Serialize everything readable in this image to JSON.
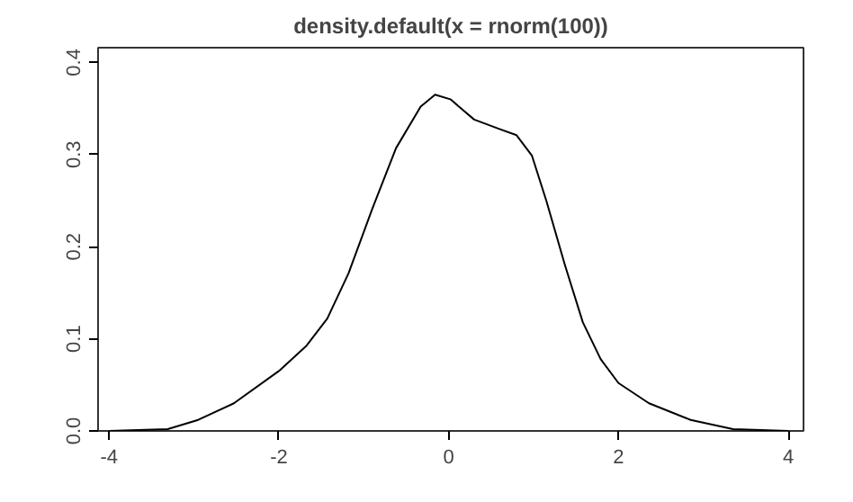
{
  "chart_data": {
    "type": "line",
    "title": "density.default(x = rnorm(100))",
    "x": [
      -4,
      -3.31,
      -2.95,
      -2.53,
      -2.0,
      -1.68,
      -1.43,
      -1.18,
      -0.9,
      -0.62,
      -0.33,
      -0.16,
      0.02,
      0.3,
      0.59,
      0.8,
      0.98,
      1.15,
      1.37,
      1.58,
      1.79,
      2.0,
      2.36,
      2.85,
      3.35,
      4.0
    ],
    "series": [
      {
        "color": "#000000",
        "values": [
          0,
          0.002,
          0.012,
          0.03,
          0.065,
          0.092,
          0.122,
          0.171,
          0.241,
          0.307,
          0.352,
          0.365,
          0.36,
          0.338,
          0.328,
          0.321,
          0.299,
          0.25,
          0.18,
          0.118,
          0.078,
          0.052,
          0.03,
          0.012,
          0.002,
          0
        ]
      }
    ],
    "xlim": [
      -4.13,
      4.18
    ],
    "ylim": [
      0,
      0.416
    ],
    "xticks": [
      -4,
      -2,
      0,
      2,
      4
    ],
    "yticks": [
      {
        "value": 0,
        "label": "0.0"
      },
      0.1,
      0.2,
      0.3,
      0.4
    ],
    "grid": false,
    "marker": "none",
    "line_style": "solid"
  }
}
